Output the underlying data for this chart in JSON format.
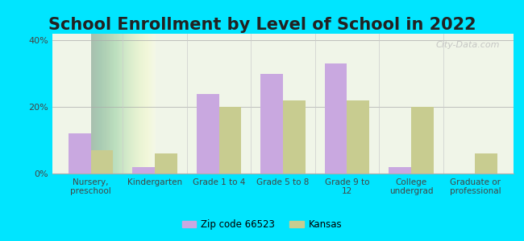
{
  "title": "School Enrollment by Level of School in 2022",
  "categories": [
    "Nursery,\npreschool",
    "Kindergarten",
    "Grade 1 to 4",
    "Grade 5 to 8",
    "Grade 9 to\n12",
    "College\nundergrad",
    "Graduate or\nprofessional"
  ],
  "zip_values": [
    12,
    2,
    24,
    30,
    33,
    2,
    0
  ],
  "kansas_values": [
    7,
    6,
    20,
    22,
    22,
    20,
    6
  ],
  "zip_color": "#c9a8e0",
  "kansas_color": "#c8cc90",
  "ylim": [
    0,
    42
  ],
  "yticks": [
    0,
    20,
    40
  ],
  "ytick_labels": [
    "0%",
    "20%",
    "40%"
  ],
  "legend_zip_label": "Zip code 66523",
  "legend_kansas_label": "Kansas",
  "background_outer": "#00e5ff",
  "background_inner_top": "#e8f5e0",
  "background_inner_bottom": "#ffffff",
  "watermark": "City-Data.com",
  "title_fontsize": 15,
  "bar_width": 0.35
}
